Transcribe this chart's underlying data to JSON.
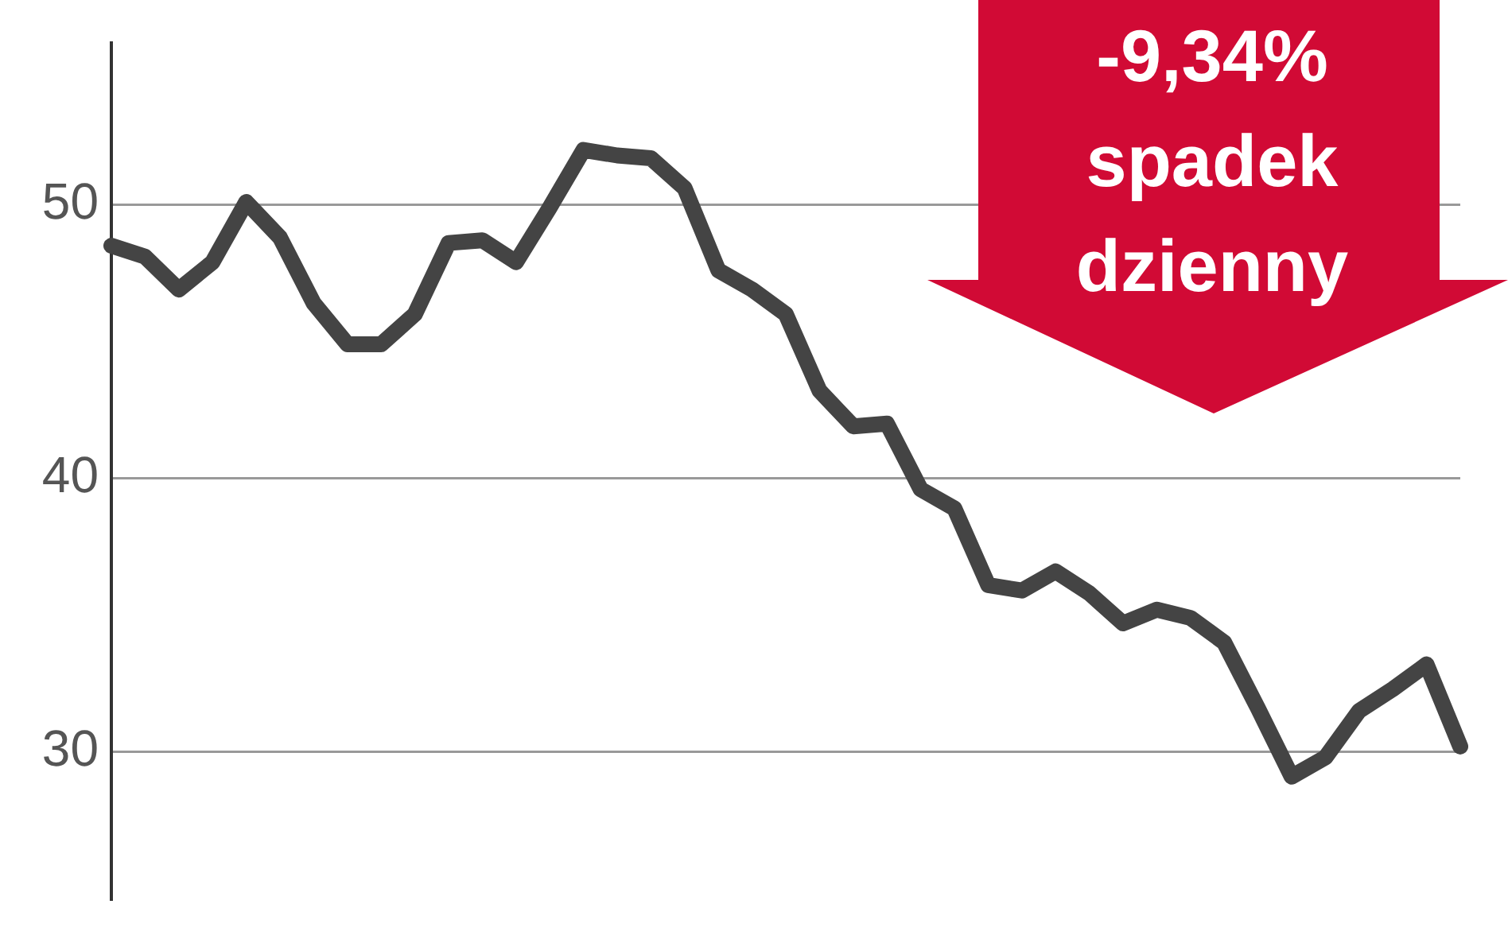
{
  "chart_data": {
    "type": "line",
    "categories": [
      null,
      null,
      null,
      null,
      null,
      null,
      null,
      null,
      null,
      null,
      null,
      null,
      null,
      null,
      null,
      null,
      null,
      null,
      null,
      null,
      null,
      null,
      null,
      null,
      null,
      null,
      null,
      null,
      null,
      null,
      null,
      null,
      null,
      null,
      null,
      null,
      null,
      null,
      null,
      null,
      null
    ],
    "series": [
      {
        "color": "#444444",
        "values": [
          48.5,
          48.1,
          46.9,
          47.9,
          50.1,
          48.8,
          46.4,
          44.9,
          44.9,
          46.0,
          48.6,
          48.7,
          47.9,
          49.9,
          52.0,
          51.8,
          51.7,
          50.6,
          47.6,
          46.9,
          46.0,
          43.2,
          41.9,
          42.0,
          39.6,
          38.9,
          36.1,
          35.9,
          36.6,
          35.8,
          34.7,
          35.2,
          34.9,
          34.0,
          31.6,
          29.1,
          29.8,
          31.5,
          32.3,
          33.2,
          30.2
        ]
      }
    ],
    "ylim": [
      24.6,
      55.9
    ],
    "yticks": [
      30,
      40,
      50
    ],
    "grid": "y",
    "legend": false,
    "marker": "none",
    "line_style": "solid",
    "tick_labels": "y",
    "annotations": [
      "-9,34%\nspadek\ndzienny"
    ]
  }
}
